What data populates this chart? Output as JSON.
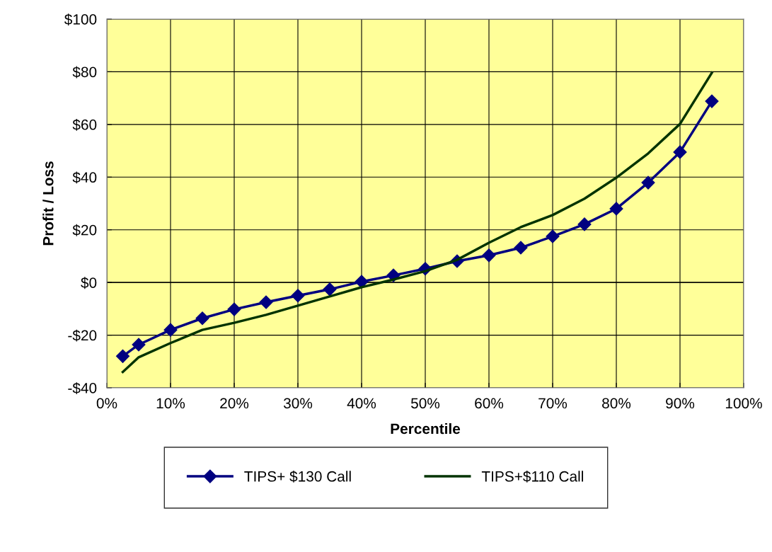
{
  "chart_data": {
    "type": "line",
    "xlabel": "Percentile",
    "ylabel": "Profit / Loss",
    "x": [
      2.5,
      5,
      10,
      15,
      20,
      25,
      30,
      35,
      40,
      45,
      50,
      55,
      60,
      65,
      70,
      75,
      80,
      85,
      90,
      95
    ],
    "series": [
      {
        "name": "TIPS+ $130 Call",
        "color": "#000080",
        "marker": "diamond",
        "values": [
          -28,
          -23.6,
          -18,
          -13.6,
          -10.2,
          -7.5,
          -5,
          -2.6,
          0.3,
          2.7,
          5.2,
          8.1,
          10.3,
          13.2,
          17.5,
          22.1,
          28,
          37.9,
          49.5,
          68.8
        ]
      },
      {
        "name": "TIPS+$110 Call",
        "color": "#003300",
        "marker": "none",
        "values": [
          -34,
          -28.4,
          -23,
          -18,
          -15.3,
          -12.3,
          -8.8,
          -5.3,
          -1.8,
          1.1,
          4.3,
          8.6,
          15.1,
          21,
          25.6,
          31.8,
          39.8,
          49,
          60.2,
          79.6
        ]
      }
    ],
    "xlim": [
      0,
      100
    ],
    "xticks": [
      {
        "value": 0,
        "label": "0%"
      },
      {
        "value": 10,
        "label": "10%"
      },
      {
        "value": 20,
        "label": "20%"
      },
      {
        "value": 30,
        "label": "30%"
      },
      {
        "value": 40,
        "label": "40%"
      },
      {
        "value": 50,
        "label": "50%"
      },
      {
        "value": 60,
        "label": "60%"
      },
      {
        "value": 70,
        "label": "70%"
      },
      {
        "value": 80,
        "label": "80%"
      },
      {
        "value": 90,
        "label": "90%"
      },
      {
        "value": 100,
        "label": "100%"
      }
    ],
    "ylim": [
      -40,
      100
    ],
    "yticks": [
      {
        "value": -40,
        "label": "-$40"
      },
      {
        "value": -20,
        "label": "-$20"
      },
      {
        "value": 0,
        "label": "$0"
      },
      {
        "value": 20,
        "label": "$20"
      },
      {
        "value": 40,
        "label": "$40"
      },
      {
        "value": 60,
        "label": "$60"
      },
      {
        "value": 80,
        "label": "$80"
      },
      {
        "value": 100,
        "label": "$100"
      }
    ],
    "grid": true,
    "legend": "bottom",
    "line_style": "solid"
  }
}
